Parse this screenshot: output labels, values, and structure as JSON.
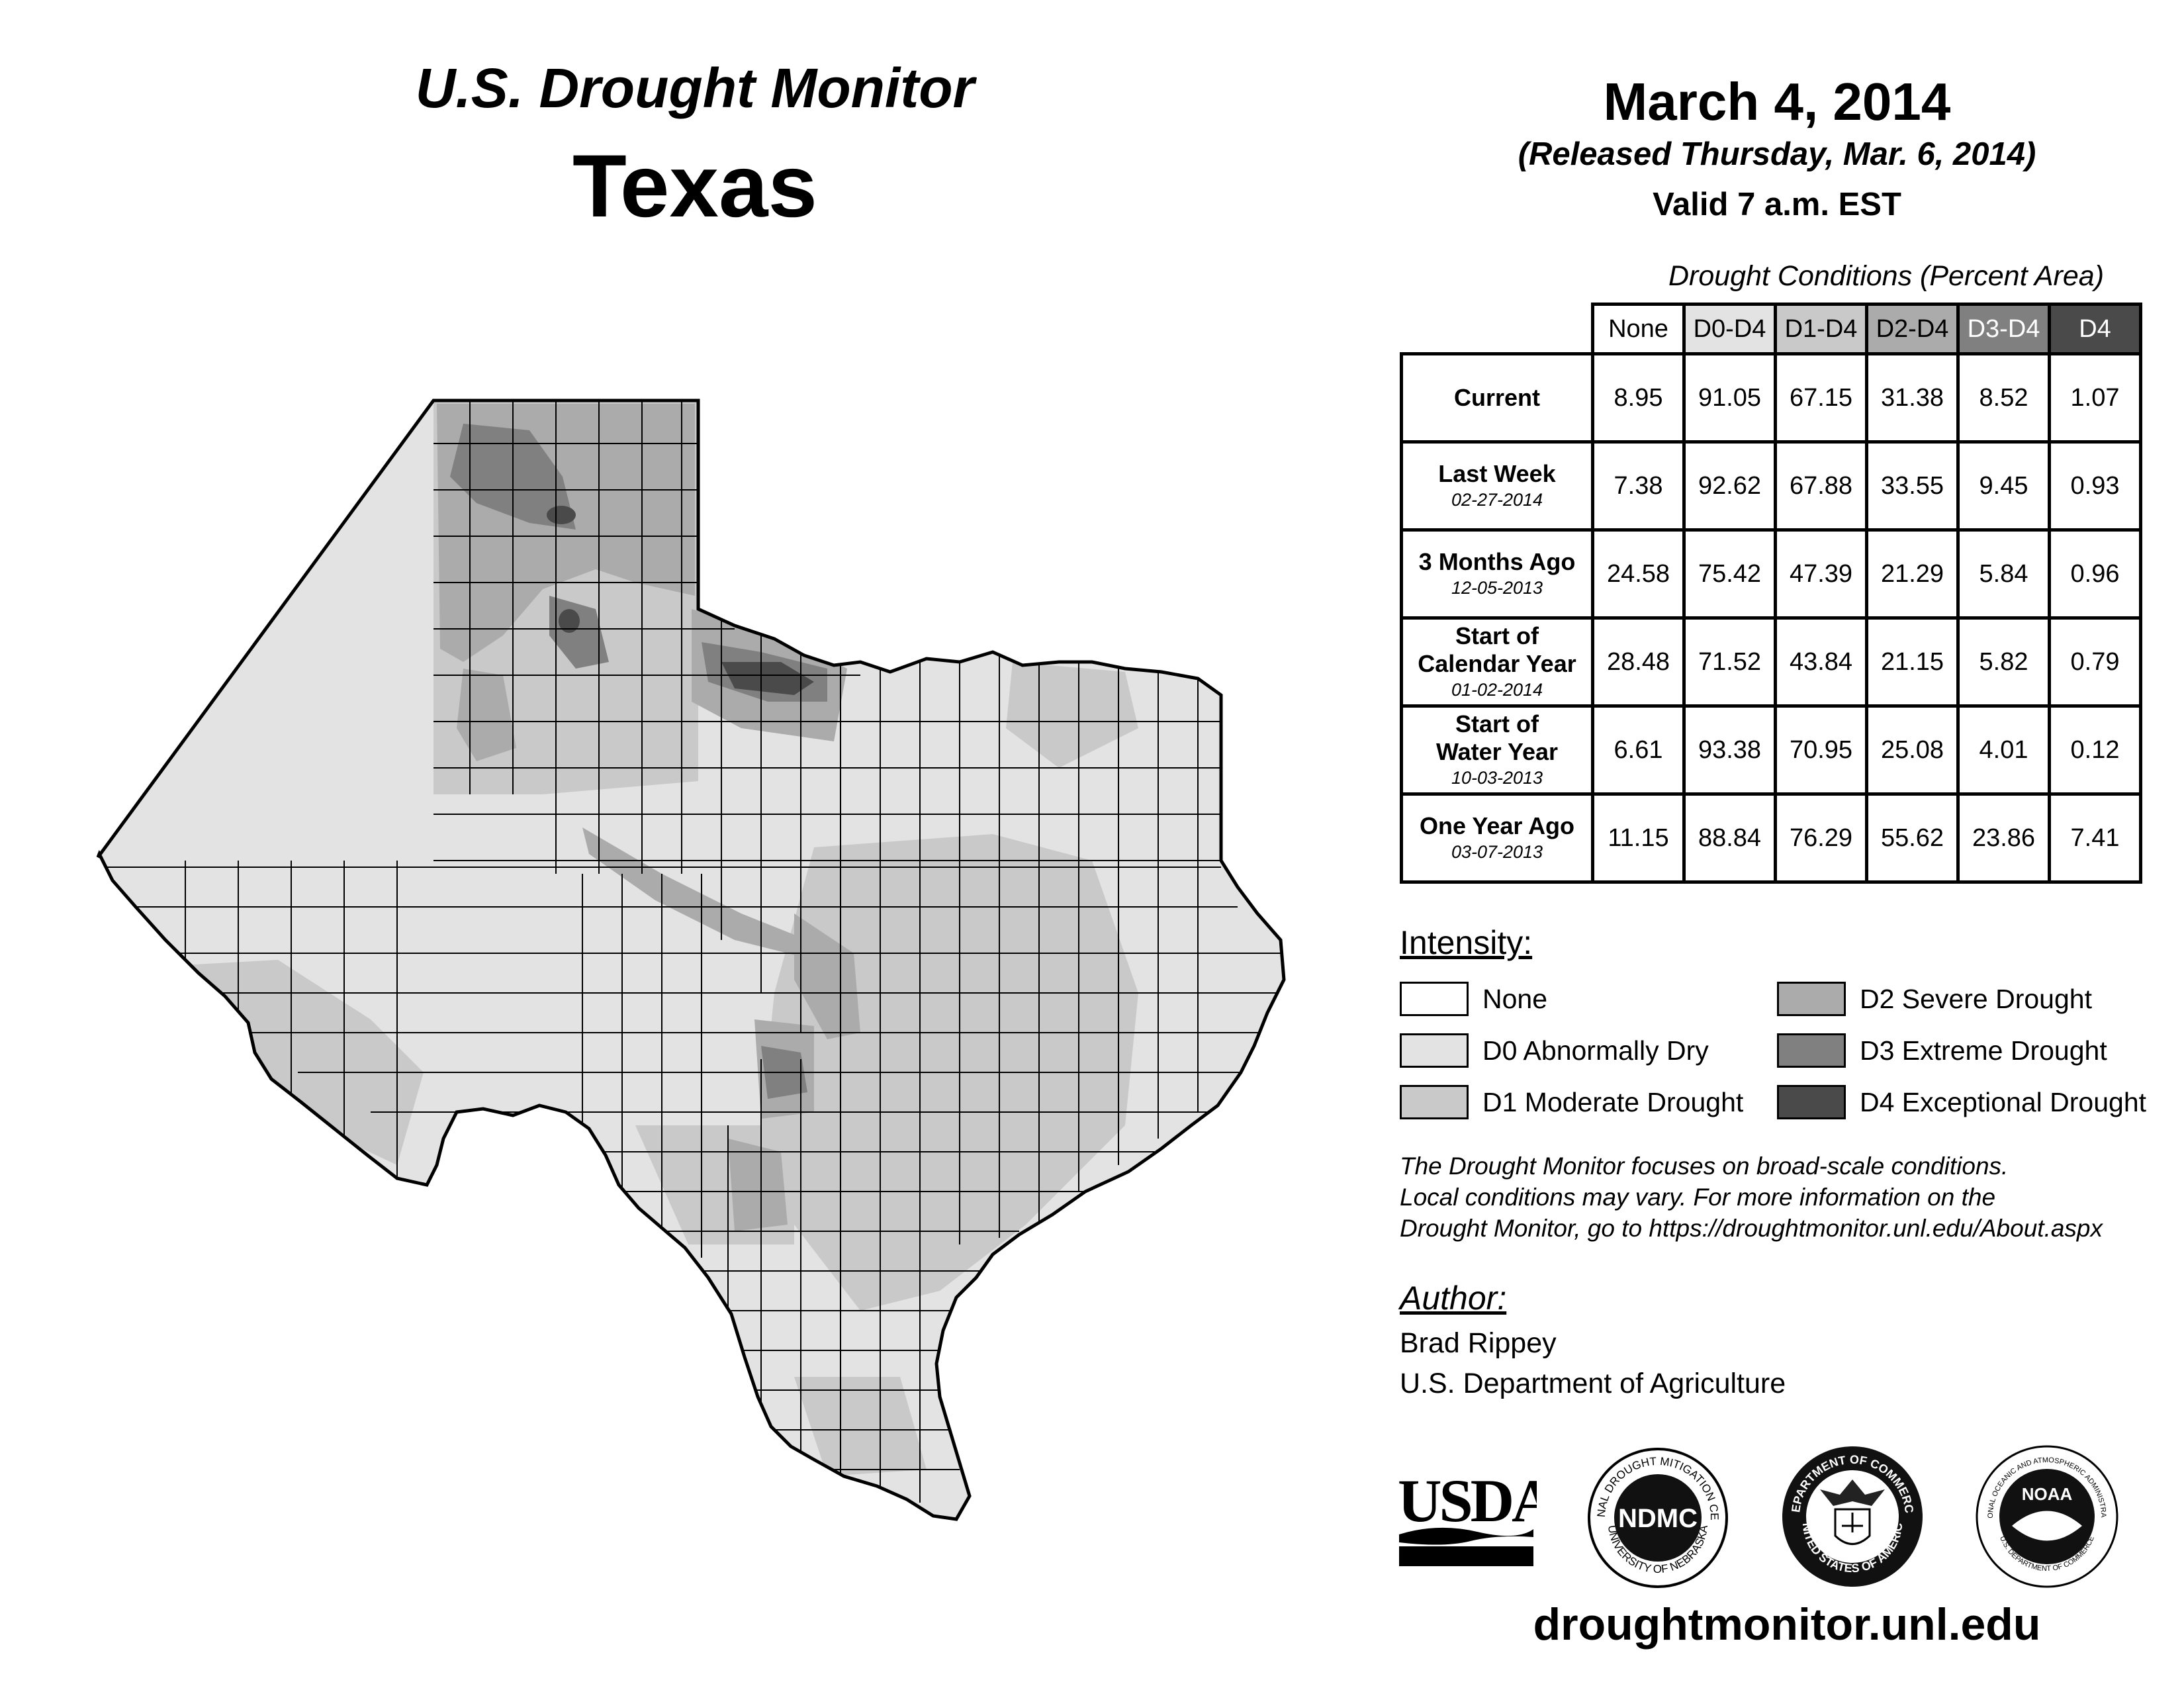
{
  "header": {
    "program": "U.S. Drought Monitor",
    "state": "Texas",
    "date": "March 4, 2014",
    "released": "(Released Thursday, Mar. 6, 2014)",
    "valid": "Valid 7 a.m. EST"
  },
  "table": {
    "caption": "Drought Conditions (Percent Area)",
    "columns": [
      "None",
      "D0-D4",
      "D1-D4",
      "D2-D4",
      "D3-D4",
      "D4"
    ],
    "rows": [
      {
        "label": "Current",
        "label2": "",
        "date": "",
        "values": [
          "8.95",
          "91.05",
          "67.15",
          "31.38",
          "8.52",
          "1.07"
        ]
      },
      {
        "label": "Last Week",
        "label2": "",
        "date": "02-27-2014",
        "values": [
          "7.38",
          "92.62",
          "67.88",
          "33.55",
          "9.45",
          "0.93"
        ]
      },
      {
        "label": "3 Months Ago",
        "label2": "",
        "date": "12-05-2013",
        "values": [
          "24.58",
          "75.42",
          "47.39",
          "21.29",
          "5.84",
          "0.96"
        ]
      },
      {
        "label": "Start of",
        "label2": "Calendar Year",
        "date": "01-02-2014",
        "values": [
          "28.48",
          "71.52",
          "43.84",
          "21.15",
          "5.82",
          "0.79"
        ]
      },
      {
        "label": "Start of",
        "label2": "Water Year",
        "date": "10-03-2013",
        "values": [
          "6.61",
          "93.38",
          "70.95",
          "25.08",
          "4.01",
          "0.12"
        ]
      },
      {
        "label": "One Year Ago",
        "label2": "",
        "date": "03-07-2013",
        "values": [
          "11.15",
          "88.84",
          "76.29",
          "55.62",
          "23.86",
          "7.41"
        ]
      }
    ]
  },
  "legend": {
    "title": "Intensity:",
    "items": [
      {
        "label": "None",
        "color": "#ffffff"
      },
      {
        "label": "D0 Abnormally Dry",
        "color": "#e3e3e3"
      },
      {
        "label": "D1 Moderate Drought",
        "color": "#c9c9c9"
      },
      {
        "label": "D2 Severe Drought",
        "color": "#ababab"
      },
      {
        "label": "D3 Extreme Drought",
        "color": "#808080"
      },
      {
        "label": "D4 Exceptional Drought",
        "color": "#4a4a4a"
      }
    ]
  },
  "header_colors": [
    "#ffffff",
    "#e3e3e3",
    "#c9c9c9",
    "#ababab",
    "#808080",
    "#4a4a4a"
  ],
  "note": "The Drought Monitor focuses on broad-scale conditions.\nLocal conditions may vary. For more information on the\nDrought Monitor, go to https://droughtmonitor.unl.edu/About.aspx",
  "author": {
    "title": "Author:",
    "name": "Brad Rippey",
    "org": "U.S. Department of Agriculture"
  },
  "logos": {
    "usda": "USDA",
    "ndmc": "NDMC",
    "ndmc_ring_top": "NATIONAL DROUGHT MITIGATION CENTER",
    "ndmc_ring_bottom": "UNIVERSITY OF NEBRASKA",
    "commerce_ring_top": "DEPARTMENT OF COMMERCE",
    "commerce_ring_bottom": "UNITED STATES OF AMERICA",
    "noaa": "NOAA",
    "noaa_ring_top": "NATIONAL OCEANIC AND ATMOSPHERIC ADMINISTRATION",
    "noaa_ring_bottom": "U.S. DEPARTMENT OF COMMERCE"
  },
  "website": "droughtmonitor.unl.edu"
}
